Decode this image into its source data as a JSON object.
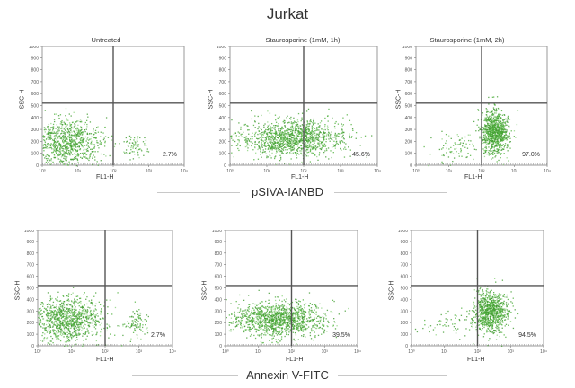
{
  "figure": {
    "title": "Jurkat",
    "sections": [
      {
        "label": "pSIVA-IANBD"
      },
      {
        "label": "Annexin V-FITC"
      }
    ]
  },
  "chart_data": [
    {
      "type": "scatter",
      "section": "pSIVA-IANBD",
      "title": "Untreated",
      "xlabel": "FL1-H",
      "ylabel": "SSC-H",
      "x_scale": "log",
      "xlim": [
        1,
        10000
      ],
      "ylim": [
        0,
        1000
      ],
      "y_ticks": [
        0,
        100,
        200,
        300,
        400,
        500,
        600,
        700,
        800,
        900,
        1000
      ],
      "x_ticks": [
        "10⁰",
        "10¹",
        "10²",
        "10³",
        "10⁴"
      ],
      "gate": {
        "x": 100,
        "y": 520
      },
      "annotation": "2.7%",
      "color": "#4caf3a",
      "clusters": [
        {
          "x_center": 5,
          "x_spread": 0.5,
          "y_center": 200,
          "y_spread": 95,
          "n": 900
        },
        {
          "x_center": 400,
          "x_spread": 0.18,
          "y_center": 170,
          "y_spread": 55,
          "n": 70
        }
      ]
    },
    {
      "type": "scatter",
      "section": "pSIVA-IANBD",
      "title": "Staurosporine (1mM, 1h)",
      "xlabel": "FL1-H",
      "ylabel": "SSC-H",
      "x_scale": "log",
      "xlim": [
        1,
        10000
      ],
      "ylim": [
        0,
        1000
      ],
      "y_ticks": [
        0,
        100,
        200,
        300,
        400,
        500,
        600,
        700,
        800,
        900,
        1000
      ],
      "x_ticks": [
        "10⁰",
        "10¹",
        "10²",
        "10³",
        "10⁴"
      ],
      "gate": {
        "x": 100,
        "y": 520
      },
      "annotation": "45.6%",
      "color": "#4caf3a",
      "clusters": [
        {
          "x_center": 50,
          "x_spread": 0.7,
          "y_center": 230,
          "y_spread": 75,
          "n": 1300
        }
      ]
    },
    {
      "type": "scatter",
      "section": "pSIVA-IANBD",
      "title": "Staurosporine (1mM, 2h)",
      "xlabel": "FL1-H",
      "ylabel": "SSC-H",
      "x_scale": "log",
      "xlim": [
        1,
        10000
      ],
      "ylim": [
        0,
        1000
      ],
      "y_ticks": [
        0,
        100,
        200,
        300,
        400,
        500,
        600,
        700,
        800,
        900,
        1000
      ],
      "x_ticks": [
        "10⁰",
        "10¹",
        "10²",
        "10³",
        "10⁴"
      ],
      "gate": {
        "x": 100,
        "y": 520
      },
      "annotation": "97.0%",
      "color": "#4caf3a",
      "clusters": [
        {
          "x_center": 250,
          "x_spread": 0.2,
          "y_center": 280,
          "y_spread": 90,
          "n": 900
        },
        {
          "x_center": 15,
          "x_spread": 0.4,
          "y_center": 170,
          "y_spread": 70,
          "n": 80
        }
      ]
    },
    {
      "type": "scatter",
      "section": "Annexin V-FITC",
      "title": "",
      "xlabel": "FL1-H",
      "ylabel": "SSC-H",
      "x_scale": "log",
      "xlim": [
        1,
        10000
      ],
      "ylim": [
        0,
        1000
      ],
      "y_ticks": [
        0,
        100,
        200,
        300,
        400,
        500,
        600,
        700,
        800,
        900,
        1000
      ],
      "x_ticks": [
        "10⁰",
        "10¹",
        "10²",
        "10³",
        "10⁴"
      ],
      "gate": {
        "x": 100,
        "y": 520
      },
      "annotation": "2.7%",
      "color": "#4caf3a",
      "clusters": [
        {
          "x_center": 7,
          "x_spread": 0.55,
          "y_center": 230,
          "y_spread": 100,
          "n": 1000
        },
        {
          "x_center": 800,
          "x_spread": 0.2,
          "y_center": 190,
          "y_spread": 60,
          "n": 90
        }
      ]
    },
    {
      "type": "scatter",
      "section": "Annexin V-FITC",
      "title": "",
      "xlabel": "FL1-H",
      "ylabel": "SSC-H",
      "x_scale": "log",
      "xlim": [
        1,
        10000
      ],
      "ylim": [
        0,
        1000
      ],
      "y_ticks": [
        0,
        100,
        200,
        300,
        400,
        500,
        600,
        700,
        800,
        900,
        1000
      ],
      "x_ticks": [
        "10⁰",
        "10¹",
        "10²",
        "10³",
        "10⁴"
      ],
      "gate": {
        "x": 100,
        "y": 520
      },
      "annotation": "39.5%",
      "color": "#4caf3a",
      "clusters": [
        {
          "x_center": 40,
          "x_spread": 0.7,
          "y_center": 230,
          "y_spread": 75,
          "n": 1300
        }
      ]
    },
    {
      "type": "scatter",
      "section": "Annexin V-FITC",
      "title": "",
      "xlabel": "FL1-H",
      "ylabel": "SSC-H",
      "x_scale": "log",
      "xlim": [
        1,
        10000
      ],
      "ylim": [
        0,
        1000
      ],
      "y_ticks": [
        0,
        100,
        200,
        300,
        400,
        500,
        600,
        700,
        800,
        900,
        1000
      ],
      "x_ticks": [
        "10⁰",
        "10¹",
        "10²",
        "10³",
        "10⁴"
      ],
      "gate": {
        "x": 100,
        "y": 520
      },
      "annotation": "94.5%",
      "color": "#4caf3a",
      "clusters": [
        {
          "x_center": 250,
          "x_spread": 0.25,
          "y_center": 300,
          "y_spread": 90,
          "n": 900
        },
        {
          "x_center": 20,
          "x_spread": 0.45,
          "y_center": 200,
          "y_spread": 70,
          "n": 70
        }
      ]
    }
  ]
}
